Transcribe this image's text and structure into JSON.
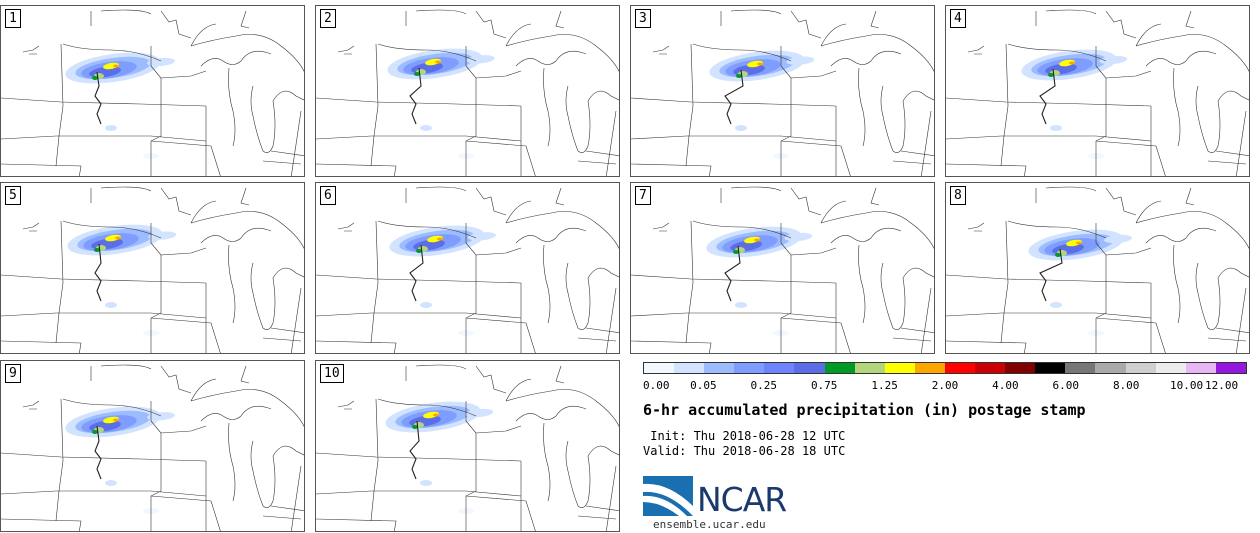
{
  "panels": [
    {
      "label": "1",
      "shift": [
        0,
        0
      ]
    },
    {
      "label": "2",
      "shift": [
        14,
        -8
      ]
    },
    {
      "label": "3",
      "shift": [
        28,
        -4
      ]
    },
    {
      "label": "4",
      "shift": [
        22,
        -6
      ]
    },
    {
      "label": "5",
      "shift": [
        4,
        -10
      ]
    },
    {
      "label": "6",
      "shift": [
        18,
        -8
      ]
    },
    {
      "label": "7",
      "shift": [
        22,
        -6
      ]
    },
    {
      "label": "8",
      "shift": [
        36,
        0
      ]
    },
    {
      "label": "9",
      "shift": [
        0,
        -2
      ]
    },
    {
      "label": "10",
      "shift": [
        10,
        -12
      ]
    }
  ],
  "colorbar": {
    "colors": [
      "#f2f8ff",
      "#d2e3ff",
      "#9cbcff",
      "#7f9cff",
      "#6e84fb",
      "#5b6ee6",
      "#009a24",
      "#b3d57e",
      "#ffff00",
      "#ffa500",
      "#ff0000",
      "#cc0000",
      "#800000",
      "#000000",
      "#777777",
      "#aaaaaa",
      "#cfcfcf",
      "#ececec",
      "#e9b7f5",
      "#9418e0"
    ],
    "labels": [
      "0.00",
      "0.05",
      "0.25",
      "0.75",
      "1.25",
      "2.00",
      "4.00",
      "6.00",
      "8.00",
      "10.00",
      "12.00"
    ]
  },
  "title": "6-hr accumulated precipitation (in) postage stamp",
  "init": " Init: Thu 2018-06-28 12 UTC",
  "valid": "Valid: Thu 2018-06-28 18 UTC",
  "logo": {
    "name": "NCAR",
    "url": "ensemble.ucar.edu"
  }
}
